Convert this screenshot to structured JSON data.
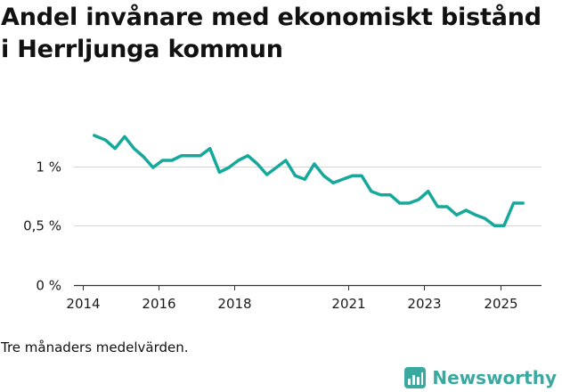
{
  "page": {
    "title": "Andel invånare med ekonomiskt bistånd i Herrljunga kommun",
    "note": "Tre månaders medelvärden.",
    "brand": "Newsworthy",
    "brand_icon": "bar-chart-logo-icon",
    "accent_color": "#16a89a",
    "brand_color": "#3aa9a0"
  },
  "chart_data": {
    "type": "line",
    "title": "Andel invånare med ekonomiskt bistånd i Herrljunga kommun",
    "xlabel": "",
    "ylabel": "",
    "xlim": [
      2014.0,
      2025.9
    ],
    "ylim": [
      0,
      1.5
    ],
    "y_ticks": [
      {
        "value": 0,
        "label": "0 %"
      },
      {
        "value": 0.5,
        "label": "0,5 %"
      },
      {
        "value": 1,
        "label": "1 %"
      }
    ],
    "x_ticks": [
      {
        "value": 2014.0,
        "label": "2014"
      },
      {
        "value": 2016.0,
        "label": "2016"
      },
      {
        "value": 2018.0,
        "label": "2018"
      },
      {
        "value": 2021.0,
        "label": "2021"
      },
      {
        "value": 2023.0,
        "label": "2023"
      },
      {
        "value": 2025.0,
        "label": "2025"
      }
    ],
    "grid": true,
    "series": [
      {
        "name": "Andel invånare med ekonomiskt bistånd",
        "color": "#16a89a",
        "x": [
          2014.3,
          2014.6,
          2014.85,
          2015.1,
          2015.35,
          2015.6,
          2015.85,
          2016.1,
          2016.35,
          2016.6,
          2016.85,
          2017.1,
          2017.35,
          2017.6,
          2017.85,
          2018.1,
          2018.35,
          2018.6,
          2018.85,
          2019.1,
          2019.35,
          2019.6,
          2019.85,
          2020.1,
          2020.35,
          2020.6,
          2020.85,
          2021.1,
          2021.35,
          2021.6,
          2021.85,
          2022.1,
          2022.35,
          2022.6,
          2022.85,
          2023.1,
          2023.35,
          2023.6,
          2023.85,
          2024.1,
          2024.35,
          2024.6,
          2024.85,
          2025.1,
          2025.35,
          2025.6
        ],
        "values": [
          1.26,
          1.22,
          1.15,
          1.25,
          1.15,
          1.08,
          0.99,
          1.05,
          1.05,
          1.09,
          1.09,
          1.09,
          1.15,
          0.95,
          0.99,
          1.05,
          1.09,
          1.02,
          0.93,
          0.99,
          1.05,
          0.92,
          0.89,
          1.02,
          0.92,
          0.86,
          0.89,
          0.92,
          0.92,
          0.79,
          0.76,
          0.76,
          0.69,
          0.69,
          0.72,
          0.79,
          0.66,
          0.66,
          0.59,
          0.63,
          0.59,
          0.56,
          0.5,
          0.5,
          0.69,
          0.69
        ]
      }
    ]
  }
}
